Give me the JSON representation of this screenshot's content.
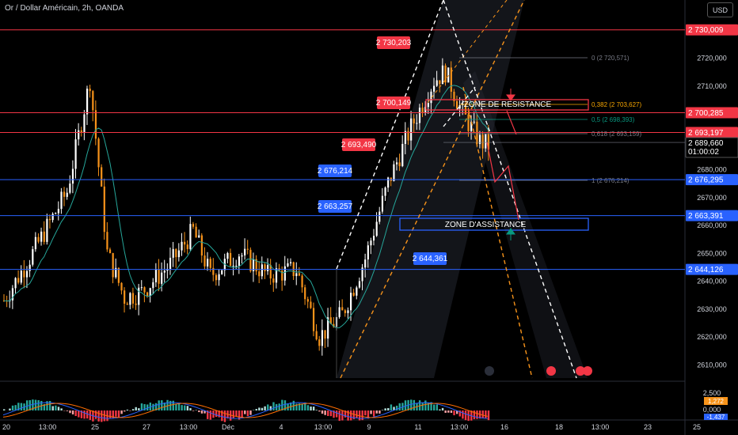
{
  "header": {
    "symbol_title": "Or / Dollar Américain, 2h, OANDA",
    "currency_button": "USD"
  },
  "chart_data": {
    "type": "candlestick",
    "price_axis": {
      "min": 2600,
      "max": 2735,
      "ticks": [
        "2720,000",
        "2710,000",
        "2690,000",
        "2680,000",
        "2670,000",
        "2660,000",
        "2650,000",
        "2640,000",
        "2630,000",
        "2620,000",
        "2610,000"
      ]
    },
    "time_axis": {
      "ticks": [
        "20",
        "13:00",
        "25",
        "27",
        "13:00",
        "Déc",
        "4",
        "13:00",
        "9",
        "11",
        "13:00",
        "16",
        "18",
        "13:00",
        "23",
        "25"
      ]
    },
    "horizontal_levels": [
      {
        "price": 2730.009,
        "label": "2 730,009",
        "color": "#f23645"
      },
      {
        "price": 2700.285,
        "label": "2 700,285",
        "color": "#f23645"
      },
      {
        "price": 2693.197,
        "label": "2 693,197",
        "color": "#f23645"
      },
      {
        "price": 2676.295,
        "label": "2 676,295",
        "color": "#2962ff"
      },
      {
        "price": 2663.391,
        "label": "2 663,391",
        "color": "#2962ff"
      },
      {
        "price": 2644.126,
        "label": "2 644,126",
        "color": "#2962ff"
      }
    ],
    "current_price": {
      "price": 2689.66,
      "label": "2 689,660",
      "countdown": "01:00:02"
    },
    "price_callouts": [
      {
        "label": "2 730,203",
        "color": "#f23645"
      },
      {
        "label": "2 700,149",
        "color": "#f23645"
      },
      {
        "label": "2 693,490",
        "color": "#f23645"
      },
      {
        "label": "2 676,214",
        "color": "#2962ff"
      },
      {
        "label": "2 663,257",
        "color": "#2962ff"
      },
      {
        "label": "2 644,361",
        "color": "#2962ff"
      }
    ],
    "fibonacci": [
      {
        "label": "0 (2 720,571)",
        "color": "#787b86"
      },
      {
        "label": "0,382 (2 703,627)",
        "color": "#f7a600"
      },
      {
        "label": "0,5 (2 698,393)",
        "color": "#089981"
      },
      {
        "label": "0,618 (2 693,159)",
        "color": "#787b86"
      },
      {
        "label": "1 (2 676,214)",
        "color": "#787b86"
      }
    ],
    "zones": [
      {
        "label": "ZONE DE RESISTANCE",
        "color": "#f23645"
      },
      {
        "label": "ZONE D'ASSISTANCE",
        "color": "#2962ff"
      }
    ],
    "indicator_axis": {
      "ticks": [
        "2,500",
        "0,000"
      ],
      "badge_a": "1,272",
      "badge_b": "-1,437"
    },
    "colors": {
      "up": "#ffffff",
      "down": "#f7931a",
      "ma": "#26a69a",
      "resist": "#f23645",
      "support": "#2962ff"
    },
    "candles_count": 180
  }
}
